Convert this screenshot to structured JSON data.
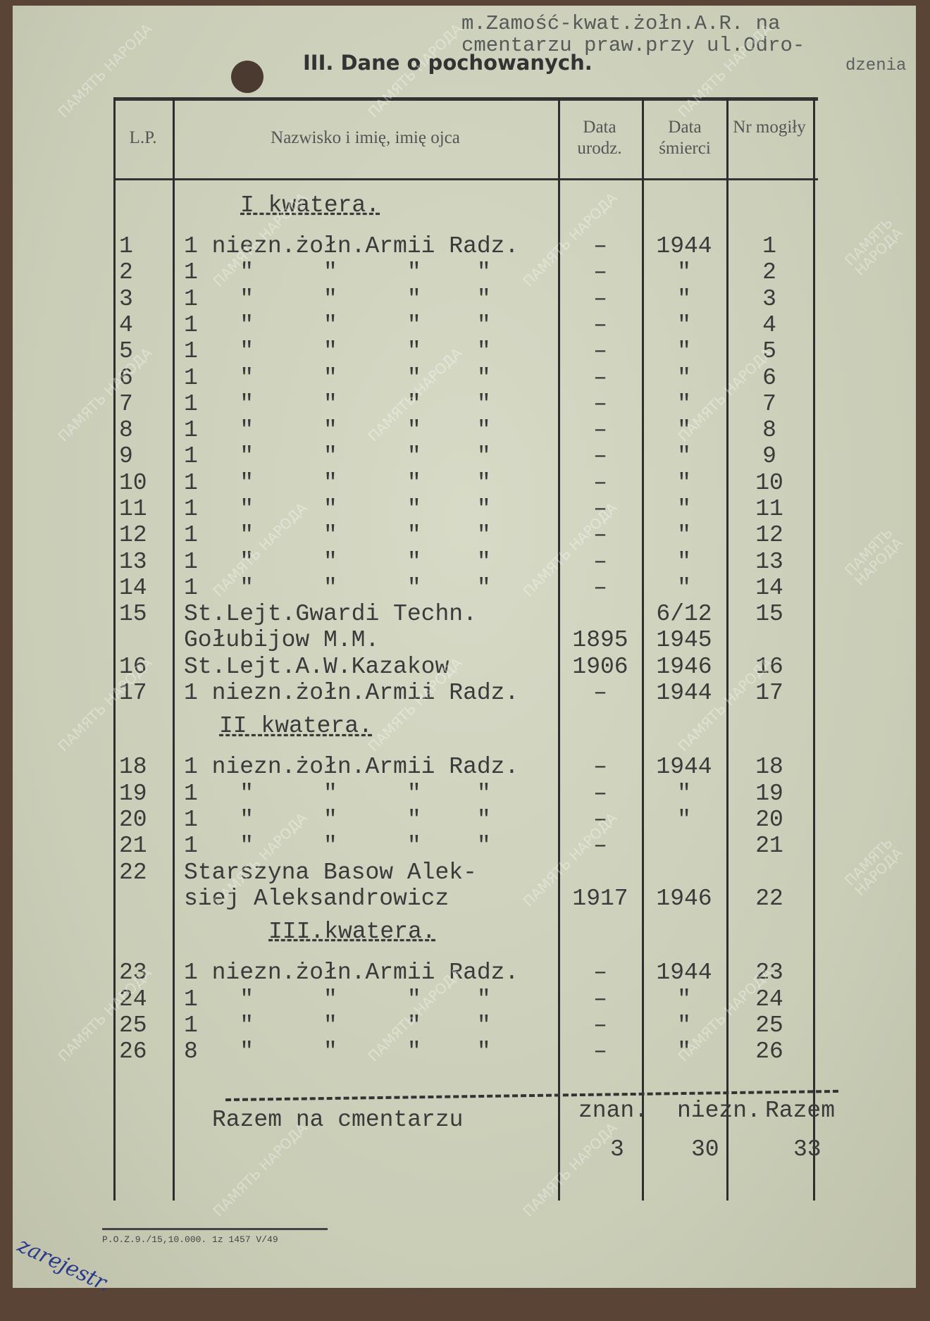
{
  "header": {
    "section_title": "III. Dane o pochowanych.",
    "place_line1": "m.Zamość-kwat.żołn.A.R. na",
    "place_line2": "cmentarzu praw.przy ul.Odro-",
    "place_line3": "dzenia"
  },
  "columns": {
    "lp": "L.P.",
    "name": "Nazwisko i imię, imię ojca",
    "born": "Data urodz.",
    "died": "Data śmierci",
    "grave": "Nr mogiły"
  },
  "sections": [
    {
      "title": "I kwatera.",
      "rows": [
        {
          "lp": "1",
          "name": "1 niezn.żołn.Armii Radz.",
          "born": "–",
          "died": "1944",
          "grave": "1"
        },
        {
          "lp": "2",
          "name": "1   \"     \"     \"    \"",
          "born": "–",
          "died": "\"",
          "grave": "2"
        },
        {
          "lp": "3",
          "name": "1   \"     \"     \"    \"",
          "born": "–",
          "died": "\"",
          "grave": "3"
        },
        {
          "lp": "4",
          "name": "1   \"     \"     \"    \"",
          "born": "–",
          "died": "\"",
          "grave": "4"
        },
        {
          "lp": "5",
          "name": "1   \"     \"     \"    \"",
          "born": "–",
          "died": "\"",
          "grave": "5"
        },
        {
          "lp": "6",
          "name": "1   \"     \"     \"    \"",
          "born": "–",
          "died": "\"",
          "grave": "6"
        },
        {
          "lp": "7",
          "name": "1   \"     \"     \"    \"",
          "born": "–",
          "died": "\"",
          "grave": "7"
        },
        {
          "lp": "8",
          "name": "1   \"     \"     \"    \"",
          "born": "–",
          "died": "\"",
          "grave": "8"
        },
        {
          "lp": "9",
          "name": "1   \"     \"     \"    \"",
          "born": "–",
          "died": "\"",
          "grave": "9"
        },
        {
          "lp": "10",
          "name": "1   \"     \"     \"    \"",
          "born": "–",
          "died": "\"",
          "grave": "10"
        },
        {
          "lp": "11",
          "name": "1   \"     \"     \"    \"",
          "born": "–",
          "died": "\"",
          "grave": "11"
        },
        {
          "lp": "12",
          "name": "1   \"     \"     \"    \"",
          "born": "–",
          "died": "\"",
          "grave": "12"
        },
        {
          "lp": "13",
          "name": "1   \"     \"     \"    \"",
          "born": "–",
          "died": "\"",
          "grave": "13"
        },
        {
          "lp": "14",
          "name": "1   \"     \"     \"    \"",
          "born": "–",
          "died": "\"",
          "grave": "14"
        },
        {
          "lp": "15",
          "name": "St.Lejt.Gwardi Techn.\nGołubijow M.M.",
          "born": "\n1895",
          "died": "6/12\n1945",
          "grave": "15"
        },
        {
          "lp": "16",
          "name": "St.Lejt.A.W.Kazakow",
          "born": "1906",
          "died": "1946",
          "grave": "16"
        },
        {
          "lp": "17",
          "name": "1 niezn.żołn.Armii Radz.",
          "born": "–",
          "died": "1944",
          "grave": "17"
        }
      ]
    },
    {
      "title": "II kwatera.",
      "rows": [
        {
          "lp": "18",
          "name": "1 niezn.żołn.Armii Radz.",
          "born": "–",
          "died": "1944",
          "grave": "18"
        },
        {
          "lp": "19",
          "name": "1   \"     \"     \"    \"",
          "born": "–",
          "died": "\"",
          "grave": "19"
        },
        {
          "lp": "20",
          "name": "1   \"     \"     \"    \"",
          "born": "–",
          "died": "\"",
          "grave": "20"
        },
        {
          "lp": "21",
          "name": "1   \"     \"     \"    \"",
          "born": "–",
          "died": "",
          "grave": "21"
        },
        {
          "lp": "22",
          "name": "Starszyna Basow Alek-\nsiej Aleksandrowicz",
          "born": "\n1917",
          "died": "\n1946",
          "grave": "\n22"
        }
      ]
    },
    {
      "title": "III.kwatera.",
      "rows": [
        {
          "lp": "23",
          "name": "1 niezn.żołn.Armii Radz.",
          "born": "–",
          "died": "1944",
          "grave": "23"
        },
        {
          "lp": "24",
          "name": "1   \"     \"     \"    \"",
          "born": "–",
          "died": "\"",
          "grave": "24"
        },
        {
          "lp": "25",
          "name": "1   \"     \"     \"    \"",
          "born": "–",
          "died": "\"",
          "grave": "25"
        },
        {
          "lp": "26",
          "name": "8   \"     \"     \"    \"",
          "born": "–",
          "died": "\"",
          "grave": "26"
        }
      ]
    }
  ],
  "totals": {
    "label": "Razem na cmentarzu",
    "known_label": "znan.",
    "unknown_label": "niezn.",
    "total_label": "Razem",
    "known": "3",
    "unknown": "30",
    "total": "33"
  },
  "footer_print": "P.O.Z.9./15,10.000. 1z 1457 V/49",
  "handwritten": "zarejestr.",
  "watermark": "ПАМЯТЬ НАРОДА"
}
